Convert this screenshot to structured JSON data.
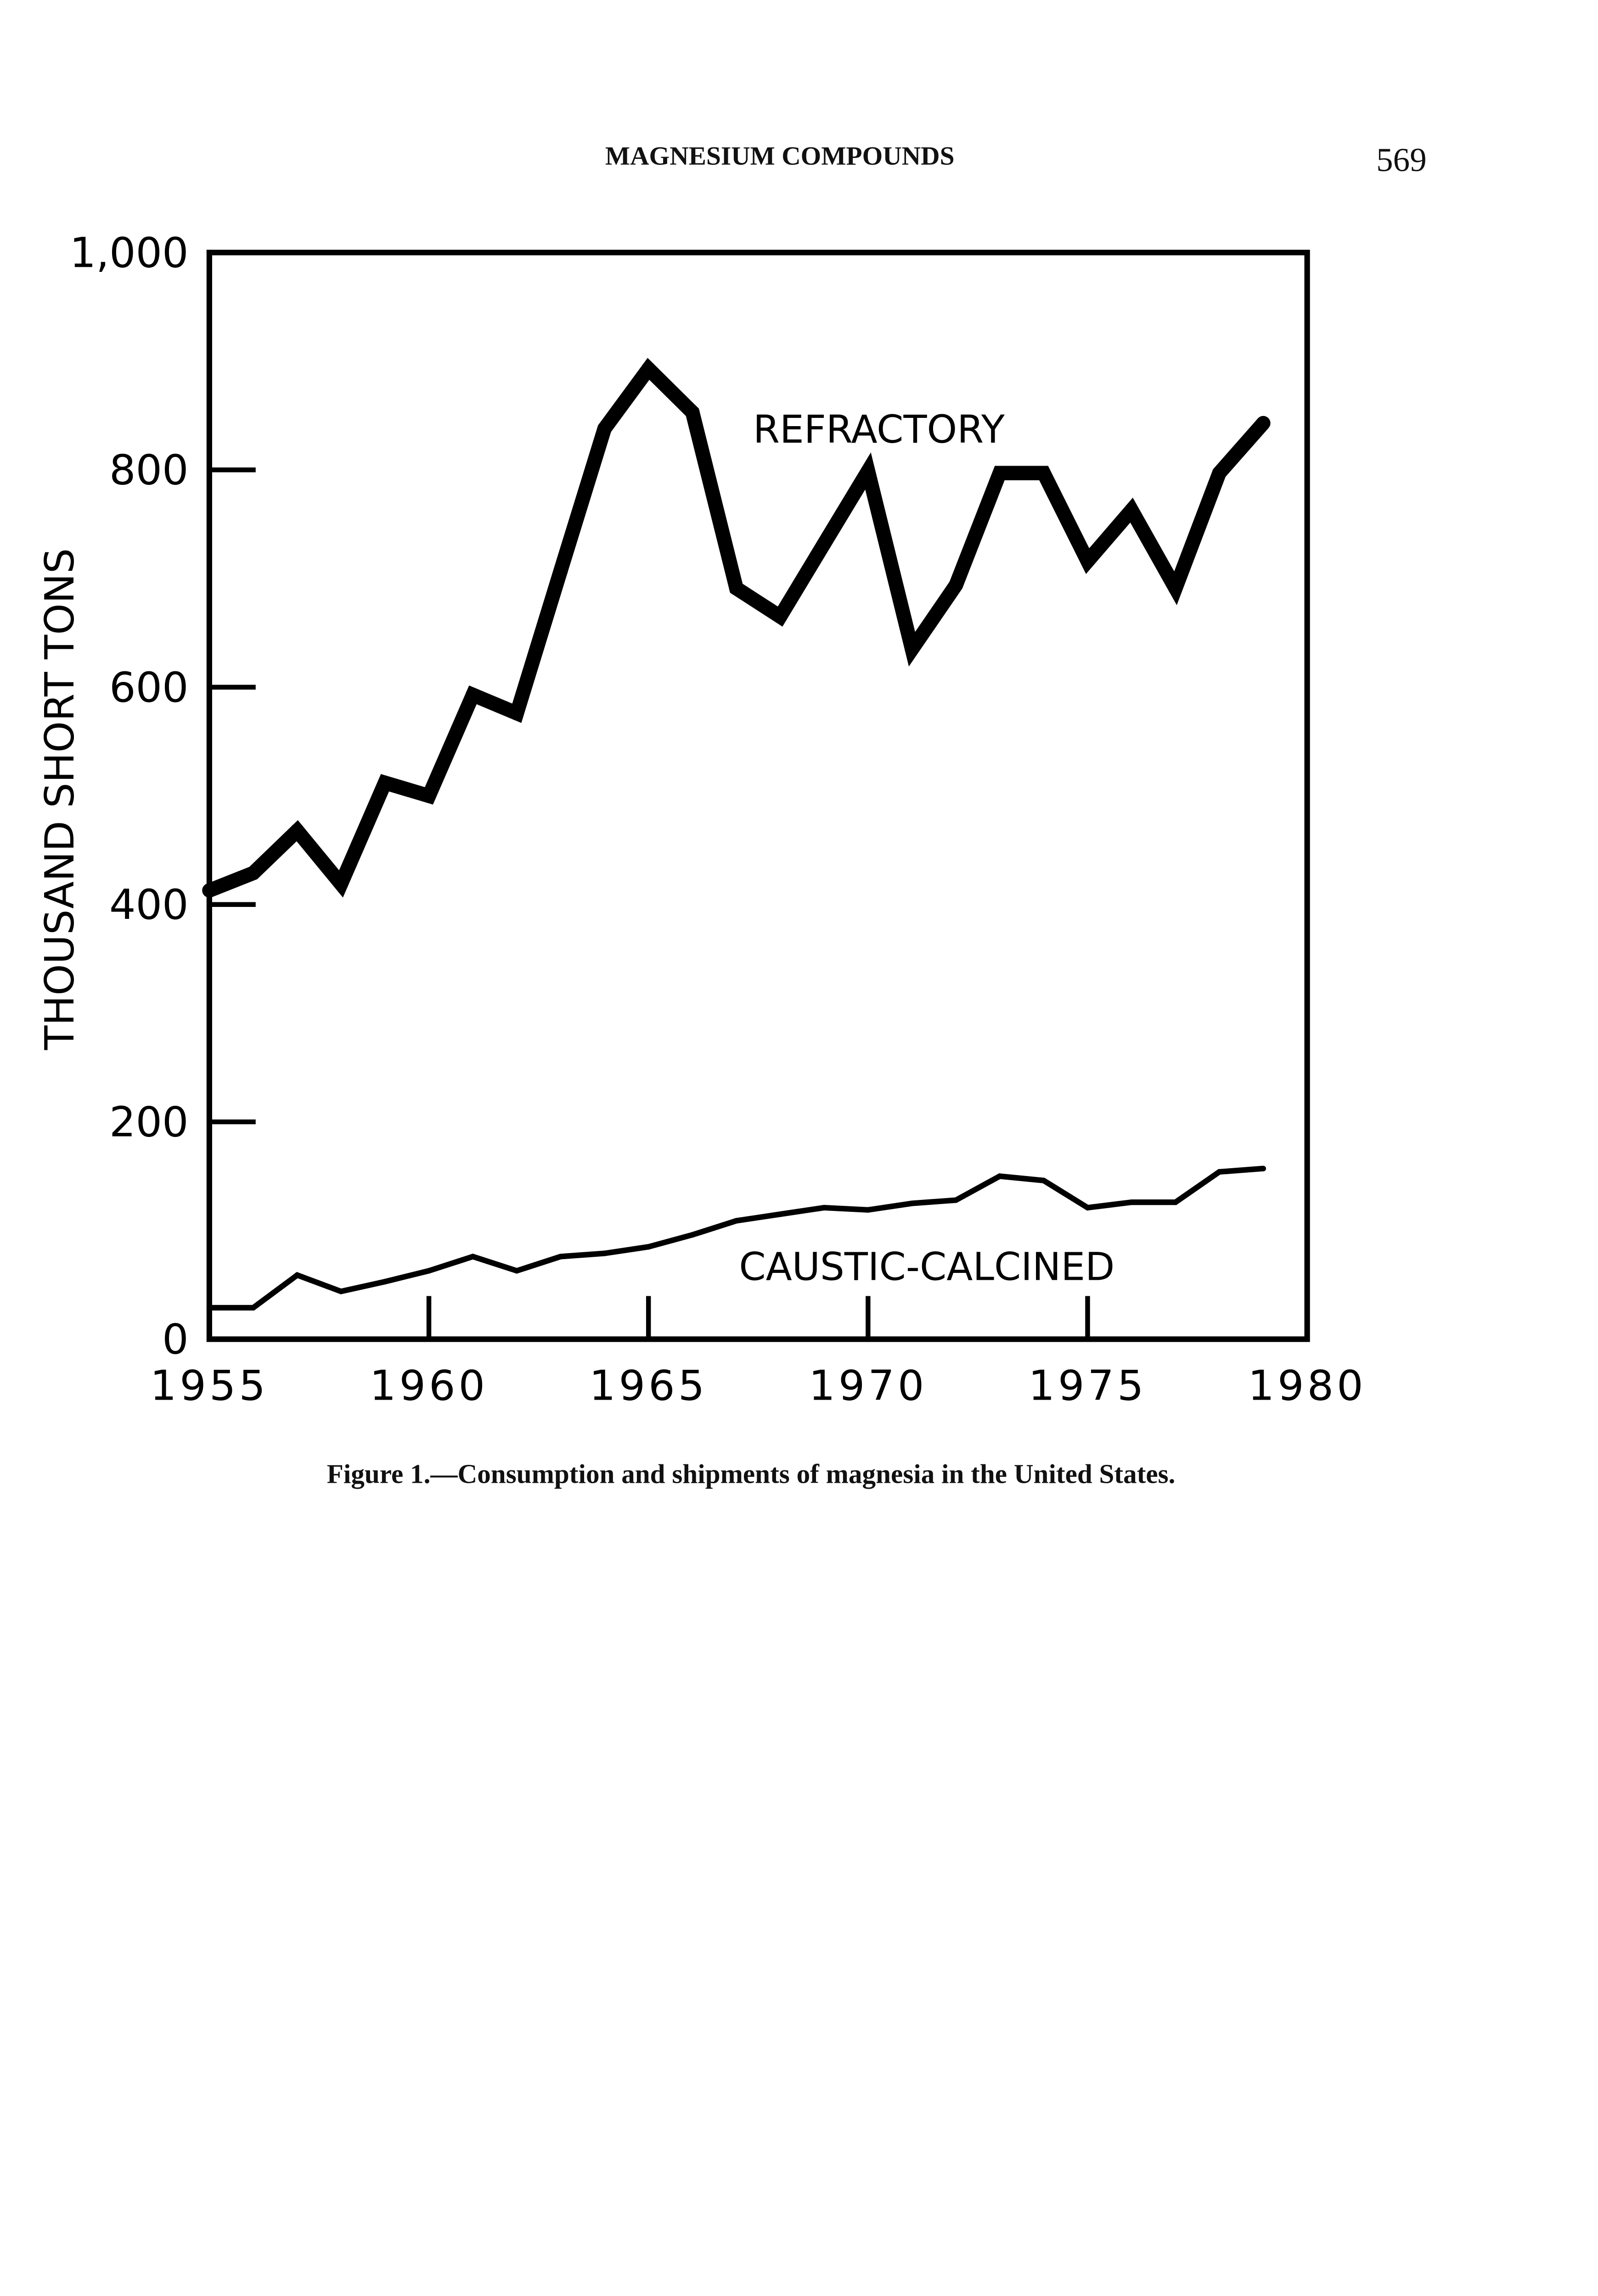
{
  "page": {
    "running_head": "MAGNESIUM COMPOUNDS",
    "page_number": "569",
    "caption": "Figure 1.—Consumption and shipments of magnesia in the United States."
  },
  "chart_data": {
    "type": "line",
    "title": "",
    "xlabel": "",
    "ylabel": "THOUSAND SHORT TONS",
    "xlim": [
      1955,
      1980
    ],
    "ylim": [
      0,
      1000
    ],
    "grid": false,
    "x_ticks": [
      "1955",
      "1960",
      "1965",
      "1970",
      "1975",
      "1980"
    ],
    "y_ticks": [
      "0",
      "200",
      "400",
      "600",
      "800",
      "1,000"
    ],
    "x": [
      1955,
      1956,
      1957,
      1958,
      1959,
      1960,
      1961,
      1962,
      1963,
      1964,
      1965,
      1966,
      1967,
      1968,
      1969,
      1970,
      1971,
      1972,
      1973,
      1974,
      1975,
      1976,
      1977,
      1978,
      1979
    ],
    "series": [
      {
        "name": "REFRACTORY",
        "label": "REFRACTORY",
        "values": [
          413,
          429,
          468,
          419,
          512,
          500,
          593,
          576,
          707,
          838,
          893,
          853,
          691,
          665,
          732,
          799,
          635,
          694,
          797,
          797,
          716,
          763,
          691,
          797,
          843
        ]
      },
      {
        "name": "CAUSTIC-CALCINED",
        "label": "CAUSTIC-CALCINED",
        "values": [
          29,
          29,
          59,
          44,
          53,
          63,
          76,
          63,
          76,
          79,
          85,
          96,
          109,
          115,
          121,
          119,
          125,
          128,
          150,
          146,
          121,
          126,
          126,
          154,
          157
        ]
      }
    ]
  }
}
